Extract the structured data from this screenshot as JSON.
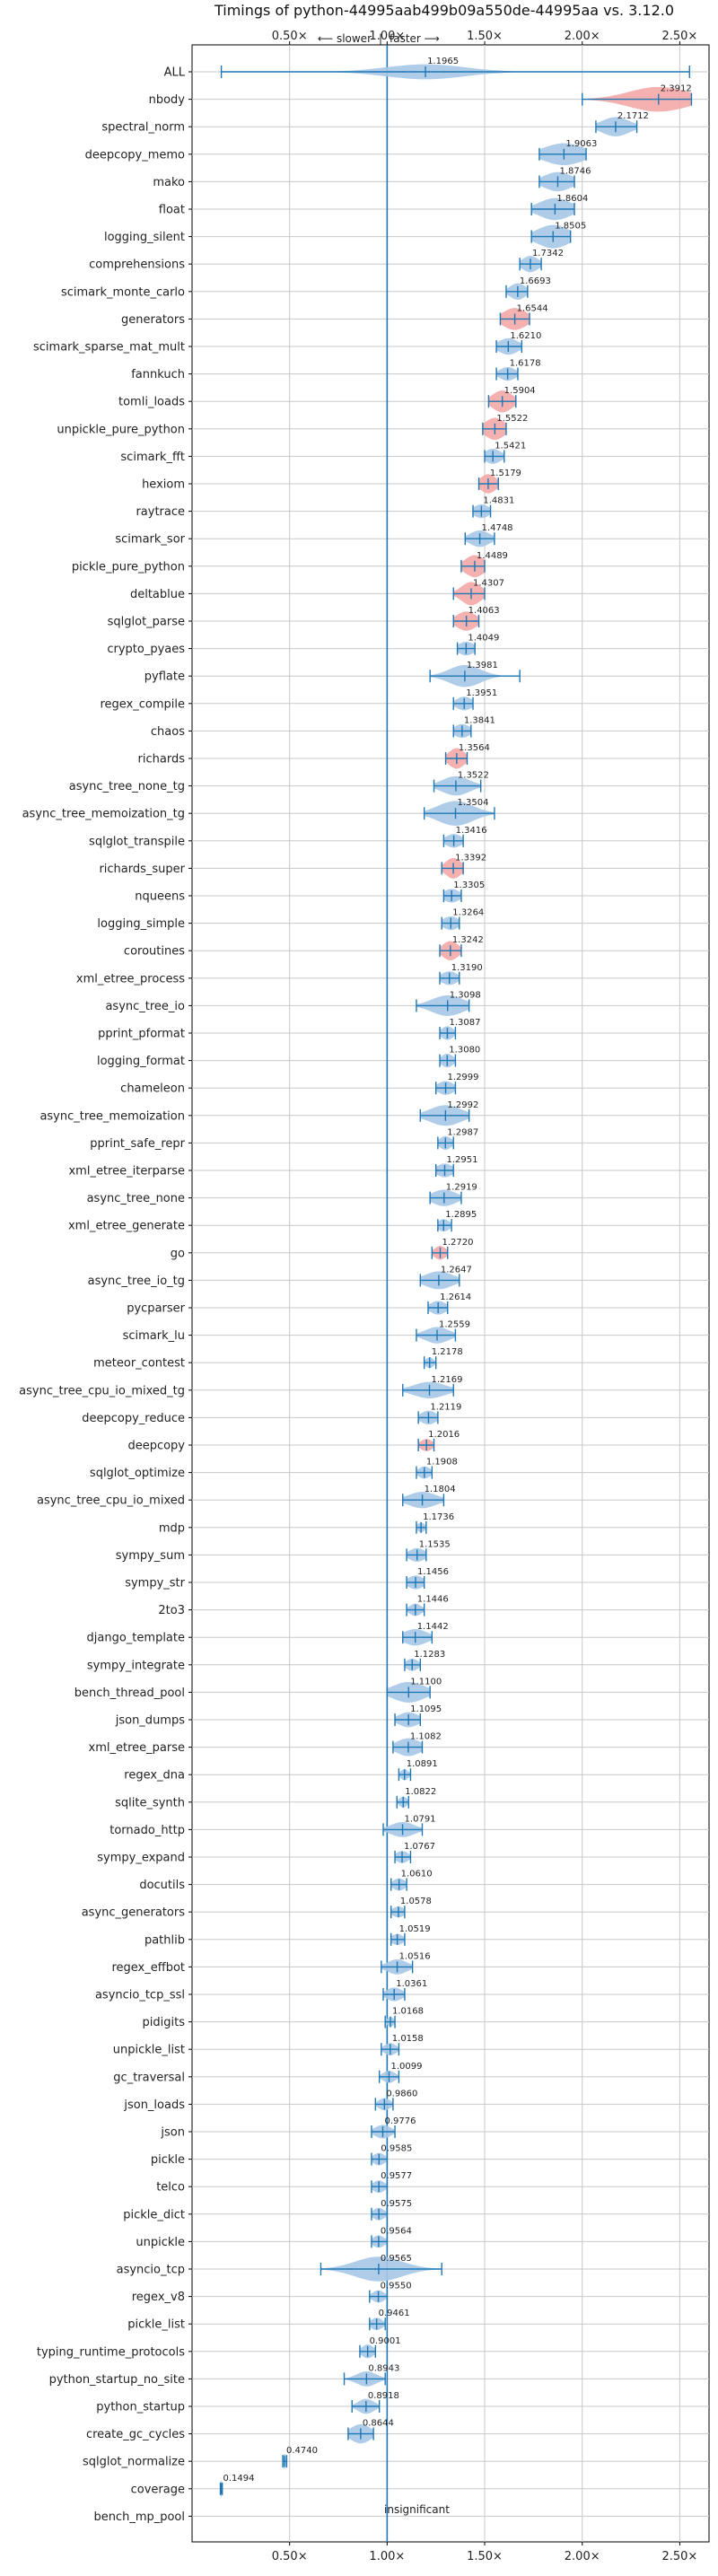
{
  "chart_data": {
    "type": "violin",
    "title": "Timings of python-44995aab499b09a550de-44995aa vs. 3.12.0",
    "direction_labels": {
      "slower": "⟵ slower",
      "separator": "|",
      "faster": "faster ⟶"
    },
    "x_ticks": [
      "0.50×",
      "1.00×",
      "1.50×",
      "2.00×",
      "2.50×"
    ],
    "x_tick_values": [
      0.5,
      1.0,
      1.5,
      2.0,
      2.5
    ],
    "xlim": [
      0.0,
      2.65
    ],
    "grid": true,
    "insignificant_label": "insignificant",
    "colors": {
      "blue": "#1f77b4",
      "blue_fill": "#a6c8e6",
      "red_fill": "#f4a7a7",
      "grid": "#c8c8c8"
    },
    "benchmarks": [
      {
        "name": "ALL",
        "value": 1.1965,
        "label": "1.1965",
        "color": "blue",
        "lo": 0.15,
        "hi": 2.55,
        "w": 0.55,
        "spread": 0.2
      },
      {
        "name": "nbody",
        "value": 2.3912,
        "label": "2.3912",
        "color": "red",
        "lo": 2.0,
        "hi": 2.56,
        "w": 0.9,
        "spread": 0.15
      },
      {
        "name": "spectral_norm",
        "value": 2.1712,
        "label": "2.1712",
        "color": "blue",
        "lo": 2.07,
        "hi": 2.28,
        "w": 0.7,
        "spread": 0.07
      },
      {
        "name": "deepcopy_memo",
        "value": 1.9063,
        "label": "1.9063",
        "color": "blue",
        "lo": 1.78,
        "hi": 2.02,
        "w": 0.8,
        "spread": 0.1
      },
      {
        "name": "mako",
        "value": 1.8746,
        "label": "1.8746",
        "color": "blue",
        "lo": 1.78,
        "hi": 1.96,
        "w": 0.7,
        "spread": 0.07
      },
      {
        "name": "float",
        "value": 1.8604,
        "label": "1.8604",
        "color": "blue",
        "lo": 1.74,
        "hi": 1.96,
        "w": 0.8,
        "spread": 0.08
      },
      {
        "name": "logging_silent",
        "value": 1.8505,
        "label": "1.8505",
        "color": "blue",
        "lo": 1.74,
        "hi": 1.94,
        "w": 0.85,
        "spread": 0.08
      },
      {
        "name": "comprehensions",
        "value": 1.7342,
        "label": "1.7342",
        "color": "blue",
        "lo": 1.68,
        "hi": 1.79,
        "w": 0.6,
        "spread": 0.04
      },
      {
        "name": "scimark_monte_carlo",
        "value": 1.6693,
        "label": "1.6693",
        "color": "blue",
        "lo": 1.61,
        "hi": 1.72,
        "w": 0.6,
        "spread": 0.04
      },
      {
        "name": "generators",
        "value": 1.6544,
        "label": "1.6544",
        "color": "red",
        "lo": 1.58,
        "hi": 1.73,
        "w": 0.8,
        "spread": 0.06
      },
      {
        "name": "scimark_sparse_mat_mult",
        "value": 1.621,
        "label": "1.6210",
        "color": "blue",
        "lo": 1.56,
        "hi": 1.69,
        "w": 0.6,
        "spread": 0.05
      },
      {
        "name": "fannkuch",
        "value": 1.6178,
        "label": "1.6178",
        "color": "blue",
        "lo": 1.56,
        "hi": 1.67,
        "w": 0.5,
        "spread": 0.04
      },
      {
        "name": "tomli_loads",
        "value": 1.5904,
        "label": "1.5904",
        "color": "red",
        "lo": 1.52,
        "hi": 1.66,
        "w": 0.8,
        "spread": 0.05
      },
      {
        "name": "unpickle_pure_python",
        "value": 1.5522,
        "label": "1.5522",
        "color": "red",
        "lo": 1.49,
        "hi": 1.61,
        "w": 0.8,
        "spread": 0.05
      },
      {
        "name": "scimark_fft",
        "value": 1.5421,
        "label": "1.5421",
        "color": "blue",
        "lo": 1.5,
        "hi": 1.6,
        "w": 0.55,
        "spread": 0.04
      },
      {
        "name": "hexiom",
        "value": 1.5179,
        "label": "1.5179",
        "color": "red",
        "lo": 1.47,
        "hi": 1.57,
        "w": 0.7,
        "spread": 0.04
      },
      {
        "name": "raytrace",
        "value": 1.4831,
        "label": "1.4831",
        "color": "blue",
        "lo": 1.44,
        "hi": 1.53,
        "w": 0.5,
        "spread": 0.04
      },
      {
        "name": "scimark_sor",
        "value": 1.4748,
        "label": "1.4748",
        "color": "blue",
        "lo": 1.4,
        "hi": 1.55,
        "w": 0.6,
        "spread": 0.05
      },
      {
        "name": "pickle_pure_python",
        "value": 1.4489,
        "label": "1.4489",
        "color": "red",
        "lo": 1.38,
        "hi": 1.5,
        "w": 0.8,
        "spread": 0.05
      },
      {
        "name": "deltablue",
        "value": 1.4307,
        "label": "1.4307",
        "color": "red",
        "lo": 1.34,
        "hi": 1.5,
        "w": 0.85,
        "spread": 0.05
      },
      {
        "name": "sqlglot_parse",
        "value": 1.4063,
        "label": "1.4063",
        "color": "red",
        "lo": 1.34,
        "hi": 1.47,
        "w": 0.7,
        "spread": 0.05
      },
      {
        "name": "crypto_pyaes",
        "value": 1.4049,
        "label": "1.4049",
        "color": "blue",
        "lo": 1.36,
        "hi": 1.45,
        "w": 0.5,
        "spread": 0.04
      },
      {
        "name": "pyflate",
        "value": 1.3981,
        "label": "1.3981",
        "color": "blue",
        "lo": 1.22,
        "hi": 1.68,
        "w": 0.8,
        "spread": 0.08
      },
      {
        "name": "regex_compile",
        "value": 1.3951,
        "label": "1.3951",
        "color": "blue",
        "lo": 1.34,
        "hi": 1.44,
        "w": 0.5,
        "spread": 0.04
      },
      {
        "name": "chaos",
        "value": 1.3841,
        "label": "1.3841",
        "color": "blue",
        "lo": 1.34,
        "hi": 1.43,
        "w": 0.5,
        "spread": 0.04
      },
      {
        "name": "richards",
        "value": 1.3564,
        "label": "1.3564",
        "color": "red",
        "lo": 1.3,
        "hi": 1.41,
        "w": 0.75,
        "spread": 0.04
      },
      {
        "name": "async_tree_none_tg",
        "value": 1.3522,
        "label": "1.3522",
        "color": "blue",
        "lo": 1.24,
        "hi": 1.48,
        "w": 0.7,
        "spread": 0.07
      },
      {
        "name": "async_tree_memoization_tg",
        "value": 1.3504,
        "label": "1.3504",
        "color": "blue",
        "lo": 1.19,
        "hi": 1.55,
        "w": 0.9,
        "spread": 0.09
      },
      {
        "name": "sqlglot_transpile",
        "value": 1.3416,
        "label": "1.3416",
        "color": "blue",
        "lo": 1.29,
        "hi": 1.39,
        "w": 0.5,
        "spread": 0.04
      },
      {
        "name": "richards_super",
        "value": 1.3392,
        "label": "1.3392",
        "color": "red",
        "lo": 1.28,
        "hi": 1.39,
        "w": 0.75,
        "spread": 0.04
      },
      {
        "name": "nqueens",
        "value": 1.3305,
        "label": "1.3305",
        "color": "blue",
        "lo": 1.29,
        "hi": 1.38,
        "w": 0.5,
        "spread": 0.04
      },
      {
        "name": "logging_simple",
        "value": 1.3264,
        "label": "1.3264",
        "color": "blue",
        "lo": 1.28,
        "hi": 1.37,
        "w": 0.5,
        "spread": 0.04
      },
      {
        "name": "coroutines",
        "value": 1.3242,
        "label": "1.3242",
        "color": "red",
        "lo": 1.27,
        "hi": 1.38,
        "w": 0.7,
        "spread": 0.04
      },
      {
        "name": "xml_etree_process",
        "value": 1.319,
        "label": "1.3190",
        "color": "blue",
        "lo": 1.27,
        "hi": 1.37,
        "w": 0.5,
        "spread": 0.04
      },
      {
        "name": "async_tree_io",
        "value": 1.3098,
        "label": "1.3098",
        "color": "blue",
        "lo": 1.15,
        "hi": 1.42,
        "w": 0.75,
        "spread": 0.08
      },
      {
        "name": "pprint_pformat",
        "value": 1.3087,
        "label": "1.3087",
        "color": "blue",
        "lo": 1.27,
        "hi": 1.35,
        "w": 0.5,
        "spread": 0.03
      },
      {
        "name": "logging_format",
        "value": 1.308,
        "label": "1.3080",
        "color": "blue",
        "lo": 1.27,
        "hi": 1.35,
        "w": 0.5,
        "spread": 0.03
      },
      {
        "name": "chameleon",
        "value": 1.2999,
        "label": "1.2999",
        "color": "blue",
        "lo": 1.25,
        "hi": 1.35,
        "w": 0.5,
        "spread": 0.04
      },
      {
        "name": "async_tree_memoization",
        "value": 1.2992,
        "label": "1.2992",
        "color": "blue",
        "lo": 1.17,
        "hi": 1.42,
        "w": 0.75,
        "spread": 0.08
      },
      {
        "name": "pprint_safe_repr",
        "value": 1.2987,
        "label": "1.2987",
        "color": "blue",
        "lo": 1.26,
        "hi": 1.34,
        "w": 0.5,
        "spread": 0.03
      },
      {
        "name": "xml_etree_iterparse",
        "value": 1.2951,
        "label": "1.2951",
        "color": "blue",
        "lo": 1.25,
        "hi": 1.34,
        "w": 0.5,
        "spread": 0.04
      },
      {
        "name": "async_tree_none",
        "value": 1.2919,
        "label": "1.2919",
        "color": "blue",
        "lo": 1.22,
        "hi": 1.38,
        "w": 0.6,
        "spread": 0.06
      },
      {
        "name": "xml_etree_generate",
        "value": 1.2895,
        "label": "1.2895",
        "color": "blue",
        "lo": 1.26,
        "hi": 1.33,
        "w": 0.45,
        "spread": 0.03
      },
      {
        "name": "go",
        "value": 1.272,
        "label": "1.2720",
        "color": "red",
        "lo": 1.23,
        "hi": 1.31,
        "w": 0.5,
        "spread": 0.03
      },
      {
        "name": "async_tree_io_tg",
        "value": 1.2647,
        "label": "1.2647",
        "color": "blue",
        "lo": 1.17,
        "hi": 1.37,
        "w": 0.65,
        "spread": 0.07
      },
      {
        "name": "pycparser",
        "value": 1.2614,
        "label": "1.2614",
        "color": "blue",
        "lo": 1.21,
        "hi": 1.31,
        "w": 0.5,
        "spread": 0.04
      },
      {
        "name": "scimark_lu",
        "value": 1.2559,
        "label": "1.2559",
        "color": "blue",
        "lo": 1.15,
        "hi": 1.35,
        "w": 0.6,
        "spread": 0.06
      },
      {
        "name": "meteor_contest",
        "value": 1.2178,
        "label": "1.2178",
        "color": "blue",
        "lo": 1.19,
        "hi": 1.25,
        "w": 0.4,
        "spread": 0.02
      },
      {
        "name": "async_tree_cpu_io_mixed_tg",
        "value": 1.2169,
        "label": "1.2169",
        "color": "blue",
        "lo": 1.08,
        "hi": 1.34,
        "w": 0.6,
        "spread": 0.08
      },
      {
        "name": "deepcopy_reduce",
        "value": 1.2119,
        "label": "1.2119",
        "color": "blue",
        "lo": 1.16,
        "hi": 1.26,
        "w": 0.5,
        "spread": 0.04
      },
      {
        "name": "deepcopy",
        "value": 1.2016,
        "label": "1.2016",
        "color": "red",
        "lo": 1.16,
        "hi": 1.24,
        "w": 0.45,
        "spread": 0.03
      },
      {
        "name": "sqlglot_optimize",
        "value": 1.1908,
        "label": "1.1908",
        "color": "blue",
        "lo": 1.15,
        "hi": 1.23,
        "w": 0.45,
        "spread": 0.03
      },
      {
        "name": "async_tree_cpu_io_mixed",
        "value": 1.1804,
        "label": "1.1804",
        "color": "blue",
        "lo": 1.08,
        "hi": 1.29,
        "w": 0.6,
        "spread": 0.07
      },
      {
        "name": "mdp",
        "value": 1.1736,
        "label": "1.1736",
        "color": "blue",
        "lo": 1.15,
        "hi": 1.2,
        "w": 0.35,
        "spread": 0.02
      },
      {
        "name": "sympy_sum",
        "value": 1.1535,
        "label": "1.1535",
        "color": "blue",
        "lo": 1.1,
        "hi": 1.2,
        "w": 0.5,
        "spread": 0.04
      },
      {
        "name": "sympy_str",
        "value": 1.1456,
        "label": "1.1456",
        "color": "blue",
        "lo": 1.1,
        "hi": 1.19,
        "w": 0.5,
        "spread": 0.04
      },
      {
        "name": "2to3",
        "value": 1.1446,
        "label": "1.1446",
        "color": "blue",
        "lo": 1.1,
        "hi": 1.19,
        "w": 0.45,
        "spread": 0.03
      },
      {
        "name": "django_template",
        "value": 1.1442,
        "label": "1.1442",
        "color": "blue",
        "lo": 1.08,
        "hi": 1.23,
        "w": 0.6,
        "spread": 0.06
      },
      {
        "name": "sympy_integrate",
        "value": 1.1283,
        "label": "1.1283",
        "color": "blue",
        "lo": 1.09,
        "hi": 1.17,
        "w": 0.45,
        "spread": 0.03
      },
      {
        "name": "bench_thread_pool",
        "value": 1.11,
        "label": "1.1100",
        "color": "blue",
        "lo": 1.0,
        "hi": 1.22,
        "w": 0.75,
        "spread": 0.08
      },
      {
        "name": "json_dumps",
        "value": 1.1095,
        "label": "1.1095",
        "color": "blue",
        "lo": 1.04,
        "hi": 1.17,
        "w": 0.55,
        "spread": 0.05
      },
      {
        "name": "xml_etree_parse",
        "value": 1.1082,
        "label": "1.1082",
        "color": "blue",
        "lo": 1.03,
        "hi": 1.18,
        "w": 0.65,
        "spread": 0.06
      },
      {
        "name": "regex_dna",
        "value": 1.0891,
        "label": "1.0891",
        "color": "blue",
        "lo": 1.06,
        "hi": 1.12,
        "w": 0.4,
        "spread": 0.02
      },
      {
        "name": "sqlite_synth",
        "value": 1.0822,
        "label": "1.0822",
        "color": "blue",
        "lo": 1.05,
        "hi": 1.11,
        "w": 0.4,
        "spread": 0.02
      },
      {
        "name": "tornado_http",
        "value": 1.0791,
        "label": "1.0791",
        "color": "blue",
        "lo": 0.98,
        "hi": 1.18,
        "w": 0.55,
        "spread": 0.06
      },
      {
        "name": "sympy_expand",
        "value": 1.0767,
        "label": "1.0767",
        "color": "blue",
        "lo": 1.04,
        "hi": 1.12,
        "w": 0.45,
        "spread": 0.03
      },
      {
        "name": "docutils",
        "value": 1.061,
        "label": "1.0610",
        "color": "blue",
        "lo": 1.02,
        "hi": 1.1,
        "w": 0.45,
        "spread": 0.03
      },
      {
        "name": "async_generators",
        "value": 1.0578,
        "label": "1.0578",
        "color": "blue",
        "lo": 1.02,
        "hi": 1.09,
        "w": 0.4,
        "spread": 0.03
      },
      {
        "name": "pathlib",
        "value": 1.0519,
        "label": "1.0519",
        "color": "blue",
        "lo": 1.02,
        "hi": 1.09,
        "w": 0.4,
        "spread": 0.03
      },
      {
        "name": "regex_effbot",
        "value": 1.0516,
        "label": "1.0516",
        "color": "blue",
        "lo": 0.97,
        "hi": 1.13,
        "w": 0.55,
        "spread": 0.05
      },
      {
        "name": "asyncio_tcp_ssl",
        "value": 1.0361,
        "label": "1.0361",
        "color": "blue",
        "lo": 0.98,
        "hi": 1.09,
        "w": 0.5,
        "spread": 0.04
      },
      {
        "name": "pidigits",
        "value": 1.0168,
        "label": "1.0168",
        "color": "blue",
        "lo": 0.99,
        "hi": 1.04,
        "w": 0.35,
        "spread": 0.02
      },
      {
        "name": "unpickle_list",
        "value": 1.0158,
        "label": "1.0158",
        "color": "blue",
        "lo": 0.97,
        "hi": 1.06,
        "w": 0.45,
        "spread": 0.03
      },
      {
        "name": "gc_traversal",
        "value": 1.0099,
        "label": "1.0099",
        "color": "blue",
        "lo": 0.96,
        "hi": 1.06,
        "w": 0.45,
        "spread": 0.03
      },
      {
        "name": "json_loads",
        "value": 0.986,
        "label": "0.9860",
        "color": "blue",
        "lo": 0.94,
        "hi": 1.03,
        "w": 0.45,
        "spread": 0.03
      },
      {
        "name": "json",
        "value": 0.9776,
        "label": "0.9776",
        "color": "blue",
        "lo": 0.92,
        "hi": 1.04,
        "w": 0.5,
        "spread": 0.04
      },
      {
        "name": "pickle",
        "value": 0.9585,
        "label": "0.9585",
        "color": "blue",
        "lo": 0.92,
        "hi": 1.0,
        "w": 0.45,
        "spread": 0.03
      },
      {
        "name": "telco",
        "value": 0.9577,
        "label": "0.9577",
        "color": "blue",
        "lo": 0.92,
        "hi": 1.0,
        "w": 0.45,
        "spread": 0.03
      },
      {
        "name": "pickle_dict",
        "value": 0.9575,
        "label": "0.9575",
        "color": "blue",
        "lo": 0.92,
        "hi": 1.0,
        "w": 0.45,
        "spread": 0.03
      },
      {
        "name": "unpickle",
        "value": 0.9564,
        "label": "0.9564",
        "color": "blue",
        "lo": 0.92,
        "hi": 1.0,
        "w": 0.45,
        "spread": 0.03
      },
      {
        "name": "asyncio_tcp",
        "value": 0.9565,
        "label": "0.9565",
        "color": "blue",
        "lo": 0.66,
        "hi": 1.28,
        "w": 0.9,
        "spread": 0.12
      },
      {
        "name": "regex_v8",
        "value": 0.955,
        "label": "0.9550",
        "color": "blue",
        "lo": 0.91,
        "hi": 1.0,
        "w": 0.45,
        "spread": 0.03
      },
      {
        "name": "pickle_list",
        "value": 0.9461,
        "label": "0.9461",
        "color": "blue",
        "lo": 0.91,
        "hi": 0.99,
        "w": 0.45,
        "spread": 0.03
      },
      {
        "name": "typing_runtime_protocols",
        "value": 0.9001,
        "label": "0.9001",
        "color": "blue",
        "lo": 0.86,
        "hi": 0.94,
        "w": 0.5,
        "spread": 0.03
      },
      {
        "name": "python_startup_no_site",
        "value": 0.8943,
        "label": "0.8943",
        "color": "blue",
        "lo": 0.78,
        "hi": 0.99,
        "w": 0.55,
        "spread": 0.05
      },
      {
        "name": "python_startup",
        "value": 0.8918,
        "label": "0.8918",
        "color": "blue",
        "lo": 0.82,
        "hi": 0.96,
        "w": 0.55,
        "spread": 0.04
      },
      {
        "name": "create_gc_cycles",
        "value": 0.8644,
        "label": "0.8644",
        "color": "blue",
        "lo": 0.8,
        "hi": 0.93,
        "w": 0.7,
        "spread": 0.05
      },
      {
        "name": "sqlglot_normalize",
        "value": 0.474,
        "label": "0.4740",
        "color": "blue",
        "lo": 0.465,
        "hi": 0.485,
        "w": 0.55,
        "spread": 0.008
      },
      {
        "name": "coverage",
        "value": 0.1494,
        "label": "0.1494",
        "color": "blue",
        "lo": 0.145,
        "hi": 0.155,
        "w": 0.6,
        "spread": 0.005
      },
      {
        "name": "bench_mp_pool",
        "value": null,
        "label": "",
        "color": "blue",
        "lo": null,
        "hi": null,
        "w": 0,
        "spread": 0
      }
    ]
  }
}
